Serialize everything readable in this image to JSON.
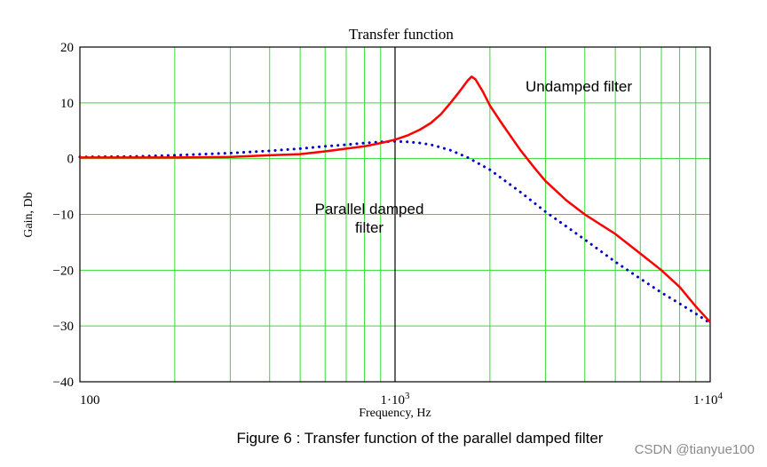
{
  "chart_data": {
    "type": "line",
    "title": "Transfer function",
    "xlabel": "Frequency, Hz",
    "ylabel": "Gain, Db",
    "xscale": "log",
    "xlim": [
      100,
      10000
    ],
    "ylim": [
      -40,
      20
    ],
    "grid": true,
    "x_ticks": [
      {
        "value": 100,
        "label": "100",
        "sup": ""
      },
      {
        "value": 1000,
        "label": "1·10",
        "sup": "3"
      },
      {
        "value": 10000,
        "label": "1·10",
        "sup": "4"
      }
    ],
    "y_ticks": [
      {
        "value": 20,
        "label": "20"
      },
      {
        "value": 10,
        "label": "10"
      },
      {
        "value": 0,
        "label": "0"
      },
      {
        "value": -10,
        "label": "−10"
      },
      {
        "value": -20,
        "label": "−20"
      },
      {
        "value": -30,
        "label": "−30"
      },
      {
        "value": -40,
        "label": "−40"
      }
    ],
    "vline_x": 1000,
    "series": [
      {
        "name": "Undamped filter",
        "color": "#ff0000",
        "style": "solid",
        "points": [
          [
            100,
            0.2
          ],
          [
            150,
            0.2
          ],
          [
            200,
            0.2
          ],
          [
            300,
            0.3
          ],
          [
            400,
            0.6
          ],
          [
            500,
            0.8
          ],
          [
            600,
            1.3
          ],
          [
            700,
            1.8
          ],
          [
            800,
            2.2
          ],
          [
            900,
            2.8
          ],
          [
            1000,
            3.4
          ],
          [
            1100,
            4.2
          ],
          [
            1200,
            5.2
          ],
          [
            1300,
            6.4
          ],
          [
            1400,
            8.0
          ],
          [
            1500,
            10.0
          ],
          [
            1600,
            12.0
          ],
          [
            1700,
            14.0
          ],
          [
            1750,
            14.7
          ],
          [
            1800,
            14.2
          ],
          [
            1900,
            12.0
          ],
          [
            2000,
            9.5
          ],
          [
            2200,
            6.0
          ],
          [
            2500,
            1.5
          ],
          [
            2800,
            -2.0
          ],
          [
            3000,
            -4.0
          ],
          [
            3500,
            -7.5
          ],
          [
            4000,
            -10.0
          ],
          [
            5000,
            -13.5
          ],
          [
            6000,
            -17.0
          ],
          [
            7000,
            -20.0
          ],
          [
            8000,
            -23.0
          ],
          [
            9000,
            -26.5
          ],
          [
            10000,
            -29.3
          ]
        ]
      },
      {
        "name": "Parallel damped filter",
        "color": "#0000cc",
        "style": "dotted",
        "points": [
          [
            100,
            0.3
          ],
          [
            150,
            0.4
          ],
          [
            200,
            0.6
          ],
          [
            300,
            1.0
          ],
          [
            400,
            1.4
          ],
          [
            500,
            1.8
          ],
          [
            600,
            2.2
          ],
          [
            700,
            2.5
          ],
          [
            800,
            2.8
          ],
          [
            900,
            3.0
          ],
          [
            1000,
            3.1
          ],
          [
            1100,
            3.0
          ],
          [
            1200,
            2.8
          ],
          [
            1300,
            2.5
          ],
          [
            1400,
            2.0
          ],
          [
            1500,
            1.5
          ],
          [
            1700,
            0.2
          ],
          [
            2000,
            -2.0
          ],
          [
            2500,
            -6.0
          ],
          [
            3000,
            -9.5
          ],
          [
            4000,
            -14.5
          ],
          [
            5000,
            -18.5
          ],
          [
            6000,
            -21.5
          ],
          [
            7000,
            -24.0
          ],
          [
            8000,
            -26.0
          ],
          [
            9000,
            -27.8
          ],
          [
            10000,
            -29.5
          ]
        ]
      }
    ],
    "annotations": {
      "undamped": "Undamped filter",
      "damped_line1": "Parallel damped",
      "damped_line2": "filter"
    }
  },
  "caption": "Figure 6 : Transfer function of the parallel damped filter",
  "watermark": "CSDN @tianyue100"
}
